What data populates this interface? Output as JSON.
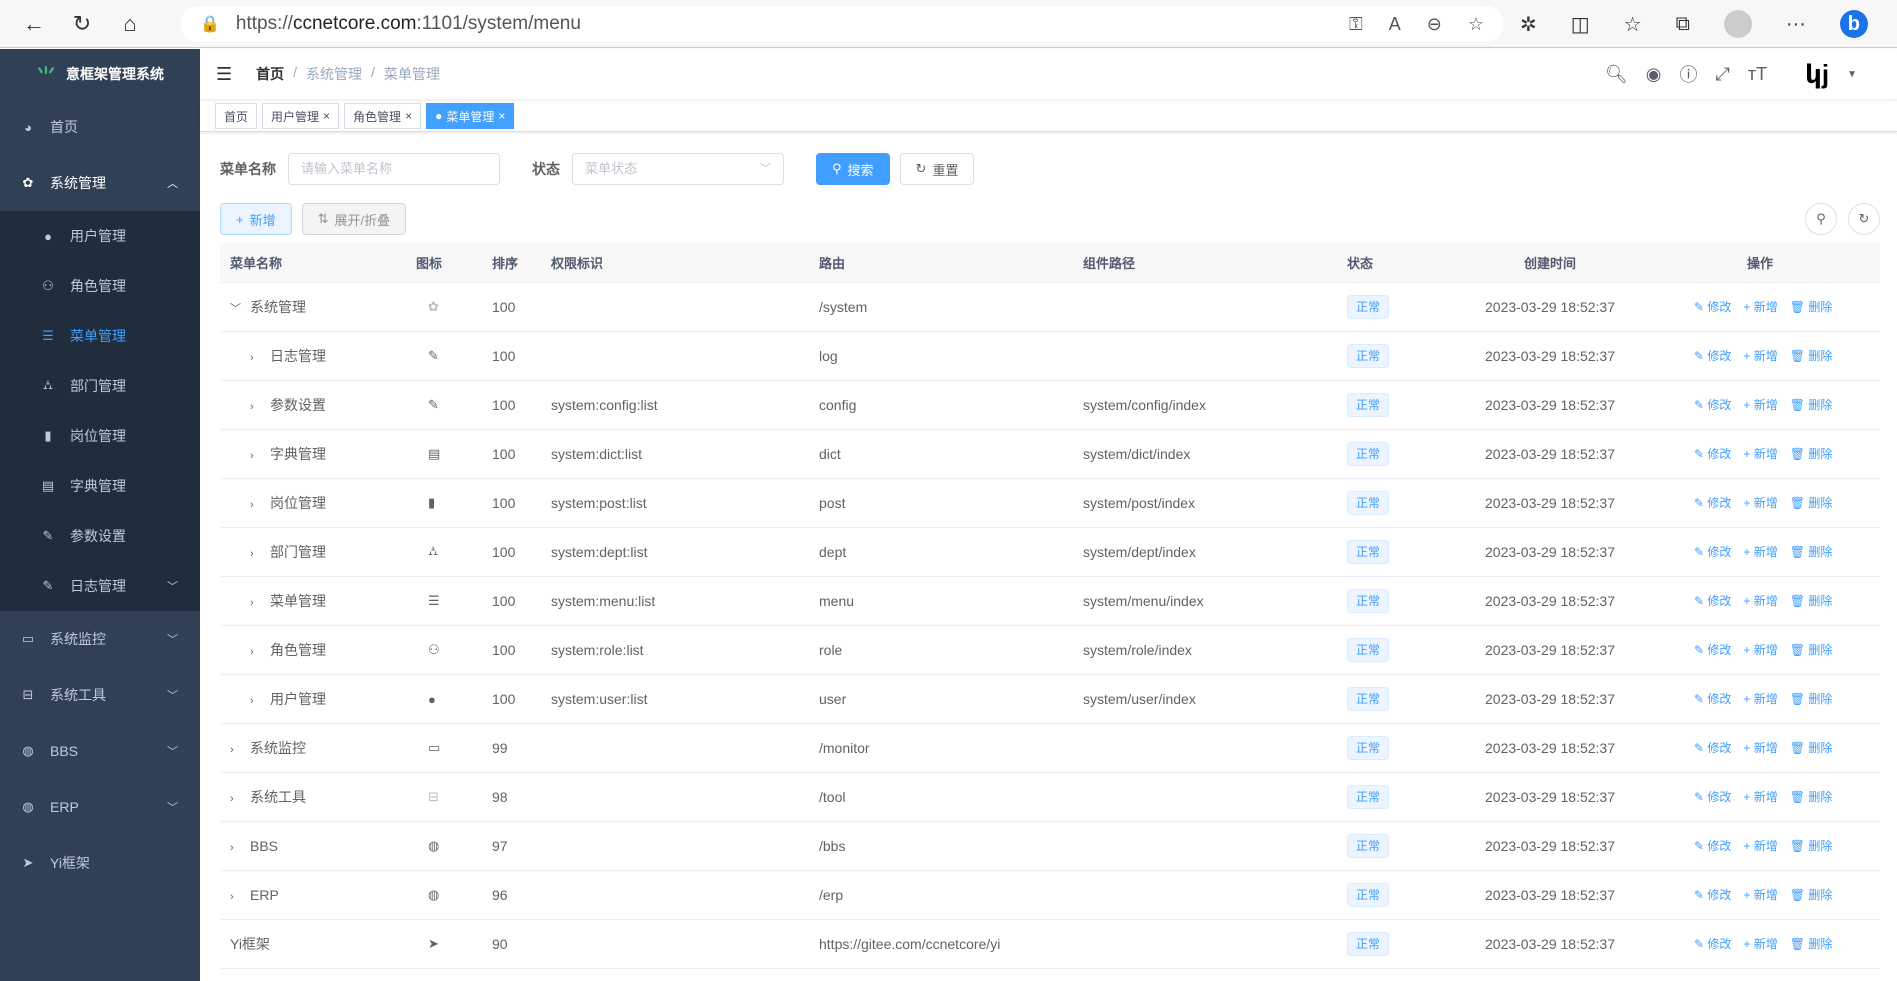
{
  "browser": {
    "url_scheme": "https://",
    "url_host": "ccnetcore.com",
    "url_path": ":1101/system/menu"
  },
  "sidebar": {
    "title": "意框架管理系统",
    "items": [
      {
        "label": "首页",
        "icon": "dashboard-icon"
      },
      {
        "label": "系统管理",
        "icon": "gear-icon",
        "expanded": true,
        "children": [
          {
            "label": "用户管理",
            "icon": "user-icon"
          },
          {
            "label": "角色管理",
            "icon": "peoples-icon"
          },
          {
            "label": "菜单管理",
            "icon": "tree-table-icon",
            "active": true
          },
          {
            "label": "部门管理",
            "icon": "tree-icon"
          },
          {
            "label": "岗位管理",
            "icon": "post-icon"
          },
          {
            "label": "字典管理",
            "icon": "dict-icon"
          },
          {
            "label": "参数设置",
            "icon": "edit-icon"
          },
          {
            "label": "日志管理",
            "icon": "log-icon"
          }
        ]
      },
      {
        "label": "系统监控",
        "icon": "monitor-icon"
      },
      {
        "label": "系统工具",
        "icon": "tool-icon"
      },
      {
        "label": "BBS",
        "icon": "globe-icon"
      },
      {
        "label": "ERP",
        "icon": "globe-icon"
      },
      {
        "label": "Yi框架",
        "icon": "send-icon"
      }
    ]
  },
  "breadcrumb": [
    "首页",
    "系统管理",
    "菜单管理"
  ],
  "tags": [
    {
      "label": "首页"
    },
    {
      "label": "用户管理"
    },
    {
      "label": "角色管理"
    },
    {
      "label": "菜单管理",
      "active": true
    }
  ],
  "search": {
    "name_label": "菜单名称",
    "name_placeholder": "请输入菜单名称",
    "status_label": "状态",
    "status_placeholder": "菜单状态",
    "search_btn": "搜索",
    "reset_btn": "重置"
  },
  "toolbar": {
    "add": "新增",
    "toggle": "展开/折叠"
  },
  "table": {
    "headers": [
      "菜单名称",
      "图标",
      "排序",
      "权限标识",
      "路由",
      "组件路径",
      "状态",
      "创建时间",
      "操作"
    ],
    "actions": {
      "edit": "修改",
      "add": "新增",
      "delete": "删除"
    },
    "rows": [
      {
        "name": "系统管理",
        "level": 0,
        "expand": "open",
        "icon": "gear-icon",
        "sort": "100",
        "perm": "",
        "route": "/system",
        "comp": "",
        "status": "正常",
        "created": "2023-03-29 18:52:37"
      },
      {
        "name": "日志管理",
        "level": 1,
        "expand": "closed",
        "icon": "log-icon",
        "sort": "100",
        "perm": "",
        "route": "log",
        "comp": "",
        "status": "正常",
        "created": "2023-03-29 18:52:37"
      },
      {
        "name": "参数设置",
        "level": 1,
        "expand": "closed",
        "icon": "edit-icon",
        "sort": "100",
        "perm": "system:config:list",
        "route": "config",
        "comp": "system/config/index",
        "status": "正常",
        "created": "2023-03-29 18:52:37"
      },
      {
        "name": "字典管理",
        "level": 1,
        "expand": "closed",
        "icon": "dict-icon",
        "sort": "100",
        "perm": "system:dict:list",
        "route": "dict",
        "comp": "system/dict/index",
        "status": "正常",
        "created": "2023-03-29 18:52:37"
      },
      {
        "name": "岗位管理",
        "level": 1,
        "expand": "closed",
        "icon": "post-icon",
        "sort": "100",
        "perm": "system:post:list",
        "route": "post",
        "comp": "system/post/index",
        "status": "正常",
        "created": "2023-03-29 18:52:37"
      },
      {
        "name": "部门管理",
        "level": 1,
        "expand": "closed",
        "icon": "tree-icon",
        "sort": "100",
        "perm": "system:dept:list",
        "route": "dept",
        "comp": "system/dept/index",
        "status": "正常",
        "created": "2023-03-29 18:52:37"
      },
      {
        "name": "菜单管理",
        "level": 1,
        "expand": "closed",
        "icon": "tree-table-icon",
        "sort": "100",
        "perm": "system:menu:list",
        "route": "menu",
        "comp": "system/menu/index",
        "status": "正常",
        "created": "2023-03-29 18:52:37"
      },
      {
        "name": "角色管理",
        "level": 1,
        "expand": "closed",
        "icon": "peoples-icon",
        "sort": "100",
        "perm": "system:role:list",
        "route": "role",
        "comp": "system/role/index",
        "status": "正常",
        "created": "2023-03-29 18:52:37"
      },
      {
        "name": "用户管理",
        "level": 1,
        "expand": "closed",
        "icon": "user-icon",
        "sort": "100",
        "perm": "system:user:list",
        "route": "user",
        "comp": "system/user/index",
        "status": "正常",
        "created": "2023-03-29 18:52:37"
      },
      {
        "name": "系统监控",
        "level": 0,
        "expand": "closed",
        "icon": "monitor-icon",
        "sort": "99",
        "perm": "",
        "route": "/monitor",
        "comp": "",
        "status": "正常",
        "created": "2023-03-29 18:52:37"
      },
      {
        "name": "系统工具",
        "level": 0,
        "expand": "closed",
        "icon": "tool-icon",
        "sort": "98",
        "perm": "",
        "route": "/tool",
        "comp": "",
        "status": "正常",
        "created": "2023-03-29 18:52:37"
      },
      {
        "name": "BBS",
        "level": 0,
        "expand": "closed",
        "icon": "globe-icon",
        "sort": "97",
        "perm": "",
        "route": "/bbs",
        "comp": "",
        "status": "正常",
        "created": "2023-03-29 18:52:37"
      },
      {
        "name": "ERP",
        "level": 0,
        "expand": "closed",
        "icon": "globe-icon",
        "sort": "96",
        "perm": "",
        "route": "/erp",
        "comp": "",
        "status": "正常",
        "created": "2023-03-29 18:52:37"
      },
      {
        "name": "Yi框架",
        "level": 0,
        "expand": "none",
        "icon": "send-icon",
        "sort": "90",
        "perm": "",
        "route": "https://gitee.com/ccnetcore/yi",
        "comp": "",
        "status": "正常",
        "created": "2023-03-29 18:52:37"
      }
    ]
  },
  "colors": {
    "sidebar": "#304156",
    "submenu": "#1f2d3d",
    "primary": "#409eff"
  }
}
